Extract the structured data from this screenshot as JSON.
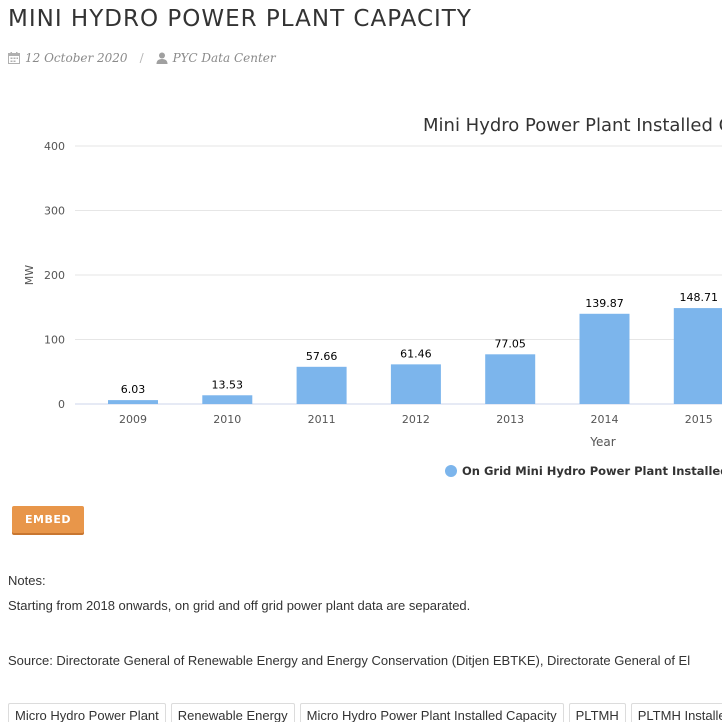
{
  "page": {
    "title": "MINI HYDRO POWER PLANT CAPACITY",
    "date": "12 October 2020",
    "author": "PYC Data Center"
  },
  "icons": {
    "date": "calendar-icon",
    "author": "user-icon"
  },
  "colors": {
    "bar": "#7cb5ec",
    "embed_button": "#e8964a"
  },
  "embed_label": "EMBED",
  "notes": {
    "label": "Notes:",
    "text": "Starting from 2018 onwards, on grid and off grid power plant data are separated."
  },
  "source": "Source: Directorate General of Renewable Energy and Energy Conservation (Ditjen EBTKE), Directorate General of El",
  "tags": [
    "Micro Hydro Power Plant",
    "Renewable Energy",
    "Micro Hydro Power Plant Installed Capacity",
    "PLTMH",
    "PLTMH Installed"
  ],
  "chart_data": {
    "type": "bar",
    "title": "Mini Hydro Power Plant Installed C",
    "xlabel": "Year",
    "ylabel": "MW",
    "categories": [
      "2009",
      "2010",
      "2011",
      "2012",
      "2013",
      "2014",
      "2015"
    ],
    "series": [
      {
        "name": "On Grid Mini Hydro Power Plant Installed Ca",
        "values": [
          6.03,
          13.53,
          57.66,
          61.46,
          77.05,
          139.87,
          148.71
        ],
        "color": "#7cb5ec"
      }
    ],
    "yticks": [
      0,
      100,
      200,
      300,
      400
    ],
    "ylim": [
      0,
      400
    ],
    "grid": true,
    "legend": "bottom"
  }
}
